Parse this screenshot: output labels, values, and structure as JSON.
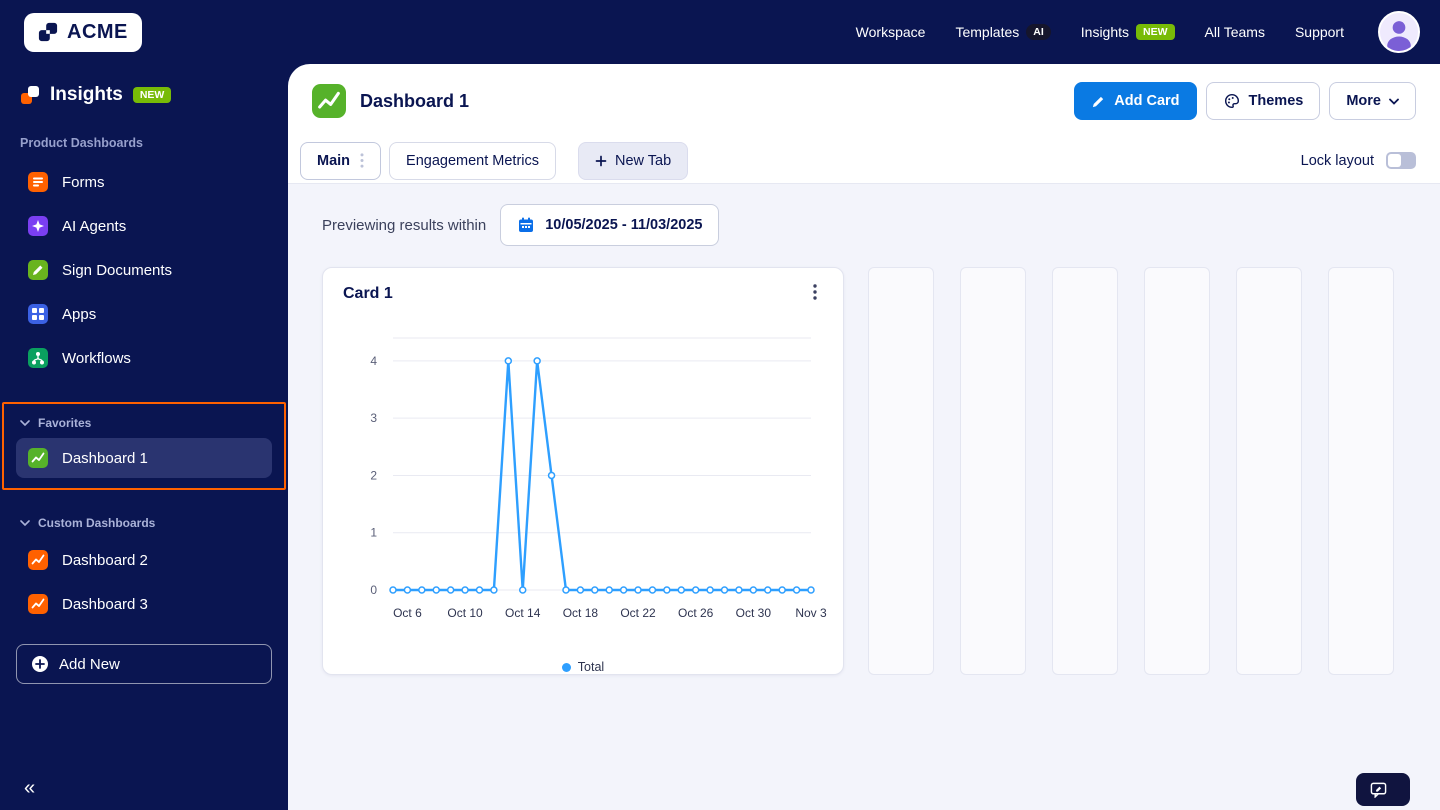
{
  "colors": {
    "navy": "#0a1551",
    "accent_blue": "#0a7ae3",
    "chart_blue": "#2e9fff",
    "green_badge": "#78bb07",
    "highlight_orange": "#ff6100",
    "content_bg": "#f3f4fb"
  },
  "topbar": {
    "logo_text": "ACME",
    "nav": [
      {
        "label": "Workspace"
      },
      {
        "label": "Templates",
        "badge": "AI"
      },
      {
        "label": "Insights",
        "badge": "NEW"
      },
      {
        "label": "All Teams"
      },
      {
        "label": "Support"
      }
    ]
  },
  "sidebar": {
    "title": "Insights",
    "title_badge": "NEW",
    "section_label": "Product Dashboards",
    "items": [
      {
        "label": "Forms"
      },
      {
        "label": "AI Agents"
      },
      {
        "label": "Sign Documents"
      },
      {
        "label": "Apps"
      },
      {
        "label": "Workflows"
      }
    ],
    "favorites": {
      "label": "Favorites",
      "items": [
        {
          "label": "Dashboard 1"
        }
      ]
    },
    "custom": {
      "label": "Custom Dashboards",
      "items": [
        {
          "label": "Dashboard 2"
        },
        {
          "label": "Dashboard 3"
        }
      ]
    },
    "add_new_label": "Add New",
    "collapse_glyph": "«"
  },
  "main": {
    "title": "Dashboard 1",
    "buttons": {
      "add_card": "Add Card",
      "themes": "Themes",
      "more": "More"
    },
    "tabs": [
      {
        "label": "Main"
      },
      {
        "label": "Engagement Metrics"
      }
    ],
    "new_tab_label": "New Tab",
    "lock_layout_label": "Lock layout",
    "lock_layout_on": false,
    "preview_label": "Previewing results within",
    "date_range": "10/05/2025 - 11/03/2025",
    "card_title": "Card 1",
    "feedback_label": "Give Feedback"
  },
  "chart_data": {
    "type": "line",
    "title": "Card 1",
    "x": [
      "Oct 5",
      "Oct 6",
      "Oct 7",
      "Oct 8",
      "Oct 9",
      "Oct 10",
      "Oct 11",
      "Oct 12",
      "Oct 13",
      "Oct 14",
      "Oct 15",
      "Oct 16",
      "Oct 17",
      "Oct 18",
      "Oct 19",
      "Oct 20",
      "Oct 21",
      "Oct 22",
      "Oct 23",
      "Oct 24",
      "Oct 25",
      "Oct 26",
      "Oct 27",
      "Oct 28",
      "Oct 29",
      "Oct 30",
      "Oct 31",
      "Nov 1",
      "Nov 2",
      "Nov 3"
    ],
    "series": [
      {
        "name": "Total",
        "values": [
          0,
          0,
          0,
          0,
          0,
          0,
          0,
          0,
          4,
          0,
          4,
          2,
          0,
          0,
          0,
          0,
          0,
          0,
          0,
          0,
          0,
          0,
          0,
          0,
          0,
          0,
          0,
          0,
          0,
          0
        ]
      }
    ],
    "yticks": [
      0,
      1,
      2,
      3,
      4
    ],
    "ylim": [
      0,
      4.4
    ],
    "tick_indices": [
      1,
      5,
      9,
      13,
      17,
      21,
      25,
      29
    ],
    "tick_labels": [
      "Oct 6",
      "Oct 10",
      "Oct 14",
      "Oct 18",
      "Oct 22",
      "Oct 26",
      "Oct 30",
      "Nov 3"
    ],
    "color": "#2e9fff",
    "grid": true,
    "legend_position": "bottom"
  }
}
